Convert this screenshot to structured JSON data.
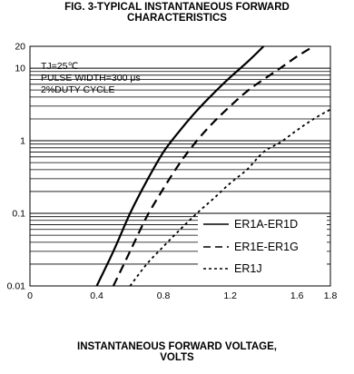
{
  "chart_data": {
    "type": "line",
    "title_line1": "FIG. 3-TYPICAL INSTANTANEOUS FORWARD",
    "title_line2": "CHARACTERISTICS",
    "xlabel_line1": "INSTANTANEOUS FORWARD VOLTAGE,",
    "xlabel_line2": "VOLTS",
    "ylabel": "",
    "xlim": [
      0,
      1.8
    ],
    "ylim": [
      0.01,
      20
    ],
    "yscale": "log",
    "grid": "horizontal",
    "x_tick_labels": [
      "0",
      "0.4",
      "0.8",
      "1.2",
      "1.6",
      "1.8"
    ],
    "y_tick_labels": [
      {
        "value": 20,
        "label": "20"
      },
      {
        "value": 10,
        "label": "10"
      },
      {
        "value": 1,
        "label": "1"
      },
      {
        "value": 0.1,
        "label": "0.1"
      },
      {
        "value": 0.01,
        "label": "0.01"
      }
    ],
    "conditions": [
      "TJ=25℃",
      "PULSE WIDTH=300 μs",
      "2%DUTY CYCLE"
    ],
    "legend_position": "bottom-right",
    "series": [
      {
        "name": "ER1A-ER1D",
        "style": "solid",
        "x": [
          0.4,
          0.5,
          0.6,
          0.7,
          0.8,
          0.9,
          1.0,
          1.1,
          1.2,
          1.3,
          1.4
        ],
        "y": [
          0.01,
          0.03,
          0.1,
          0.28,
          0.7,
          1.4,
          2.6,
          4.5,
          7.5,
          12,
          20
        ]
      },
      {
        "name": "ER1E-ER1G",
        "style": "dashed",
        "x": [
          0.5,
          0.6,
          0.7,
          0.8,
          0.9,
          1.0,
          1.1,
          1.2,
          1.3,
          1.4,
          1.5,
          1.6,
          1.7
        ],
        "y": [
          0.01,
          0.03,
          0.09,
          0.22,
          0.5,
          1.0,
          1.8,
          3.0,
          4.8,
          7.0,
          10,
          14.5,
          20
        ]
      },
      {
        "name": "ER1J",
        "style": "dotted",
        "x": [
          0.6,
          0.7,
          0.8,
          0.9,
          1.0,
          1.1,
          1.2,
          1.3,
          1.4,
          1.5,
          1.6,
          1.7,
          1.8
        ],
        "y": [
          0.01,
          0.02,
          0.035,
          0.06,
          0.1,
          0.16,
          0.26,
          0.4,
          0.7,
          0.95,
          1.4,
          2.0,
          2.7
        ]
      }
    ]
  }
}
